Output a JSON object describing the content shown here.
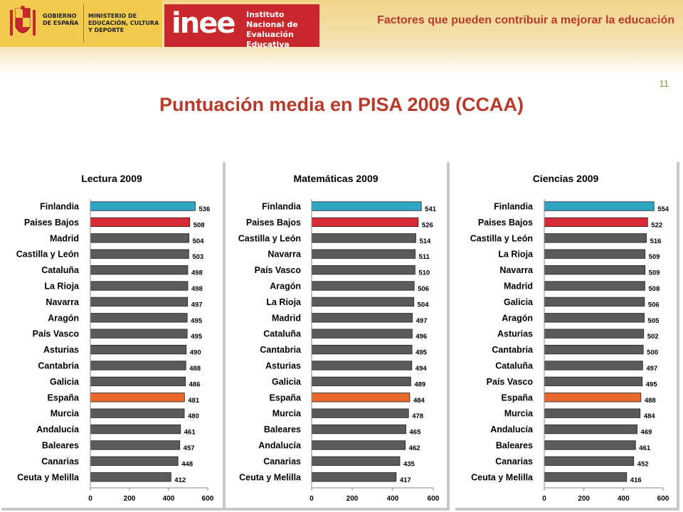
{
  "header": {
    "gov_label": "GOBIERNO DE ESPAÑA",
    "ministry_label": "MINISTERIO DE EDUCACIÓN, CULTURA Y DEPORTE",
    "inee_logo": "inee",
    "inee_label": "Instituto Nacional de Evaluación Educativa",
    "top_title": "Factores que pueden contribuir a mejorar la educación",
    "page_number": "11"
  },
  "main_title": "Puntuación media en PISA 2009 (CCAA)",
  "colors": {
    "finlandia": "#2ea6c4",
    "paises_bajos": "#d92b37",
    "espana": "#e8692c",
    "default": "#5a5a5a",
    "accent": "#b83a2b"
  },
  "chart_data": [
    {
      "type": "bar",
      "orientation": "horizontal",
      "title": "Lectura 2009",
      "categories": [
        "Finlandia",
        "Paises Bajos",
        "Madrid",
        "Castilla y León",
        "Cataluña",
        "La Rioja",
        "Navarra",
        "Aragón",
        "País Vasco",
        "Asturias",
        "Cantabria",
        "Galicia",
        "España",
        "Murcia",
        "Andalucía",
        "Baleares",
        "Canarias",
        "Ceuta y Melilla"
      ],
      "values": [
        536,
        508,
        504,
        503,
        498,
        498,
        497,
        495,
        495,
        490,
        488,
        486,
        481,
        480,
        461,
        457,
        448,
        412
      ],
      "highlight": {
        "Finlandia": "#2ea6c4",
        "Paises Bajos": "#d92b37",
        "España": "#e8692c"
      },
      "xlim": [
        0,
        600
      ],
      "xticks": [
        0,
        200,
        400,
        600
      ],
      "grid": false
    },
    {
      "type": "bar",
      "orientation": "horizontal",
      "title": "Matemáticas 2009",
      "categories": [
        "Finlandia",
        "Paises Bajos",
        "Castilla y León",
        "Navarra",
        "País Vasco",
        "Aragón",
        "La Rioja",
        "Madrid",
        "Cataluña",
        "Cantabria",
        "Asturias",
        "Galicia",
        "España",
        "Murcia",
        "Baleares",
        "Andalucía",
        "Canarias",
        "Ceuta y Melilla"
      ],
      "values": [
        541,
        526,
        514,
        511,
        510,
        506,
        504,
        497,
        496,
        495,
        494,
        489,
        484,
        478,
        465,
        462,
        435,
        417
      ],
      "highlight": {
        "Finlandia": "#2ea6c4",
        "Paises Bajos": "#d92b37",
        "España": "#e8692c"
      },
      "xlim": [
        0,
        600
      ],
      "xticks": [
        0,
        200,
        400,
        600
      ],
      "grid": false
    },
    {
      "type": "bar",
      "orientation": "horizontal",
      "title": "Ciencias 2009",
      "categories": [
        "Finlandia",
        "Paises Bajos",
        "Castilla y León",
        "La Rioja",
        "Navarra",
        "Madrid",
        "Galicia",
        "Aragón",
        "Asturias",
        "Cantabria",
        "Cataluña",
        "País Vasco",
        "España",
        "Murcia",
        "Andalucía",
        "Baleares",
        "Canarias",
        "Ceuta y Melilla"
      ],
      "values": [
        554,
        522,
        516,
        509,
        509,
        508,
        506,
        505,
        502,
        500,
        497,
        495,
        488,
        484,
        469,
        461,
        452,
        416
      ],
      "highlight": {
        "Finlandia": "#2ea6c4",
        "Paises Bajos": "#d92b37",
        "España": "#e8692c"
      },
      "xlim": [
        0,
        600
      ],
      "xticks": [
        0,
        200,
        400,
        600
      ],
      "grid": false
    }
  ]
}
